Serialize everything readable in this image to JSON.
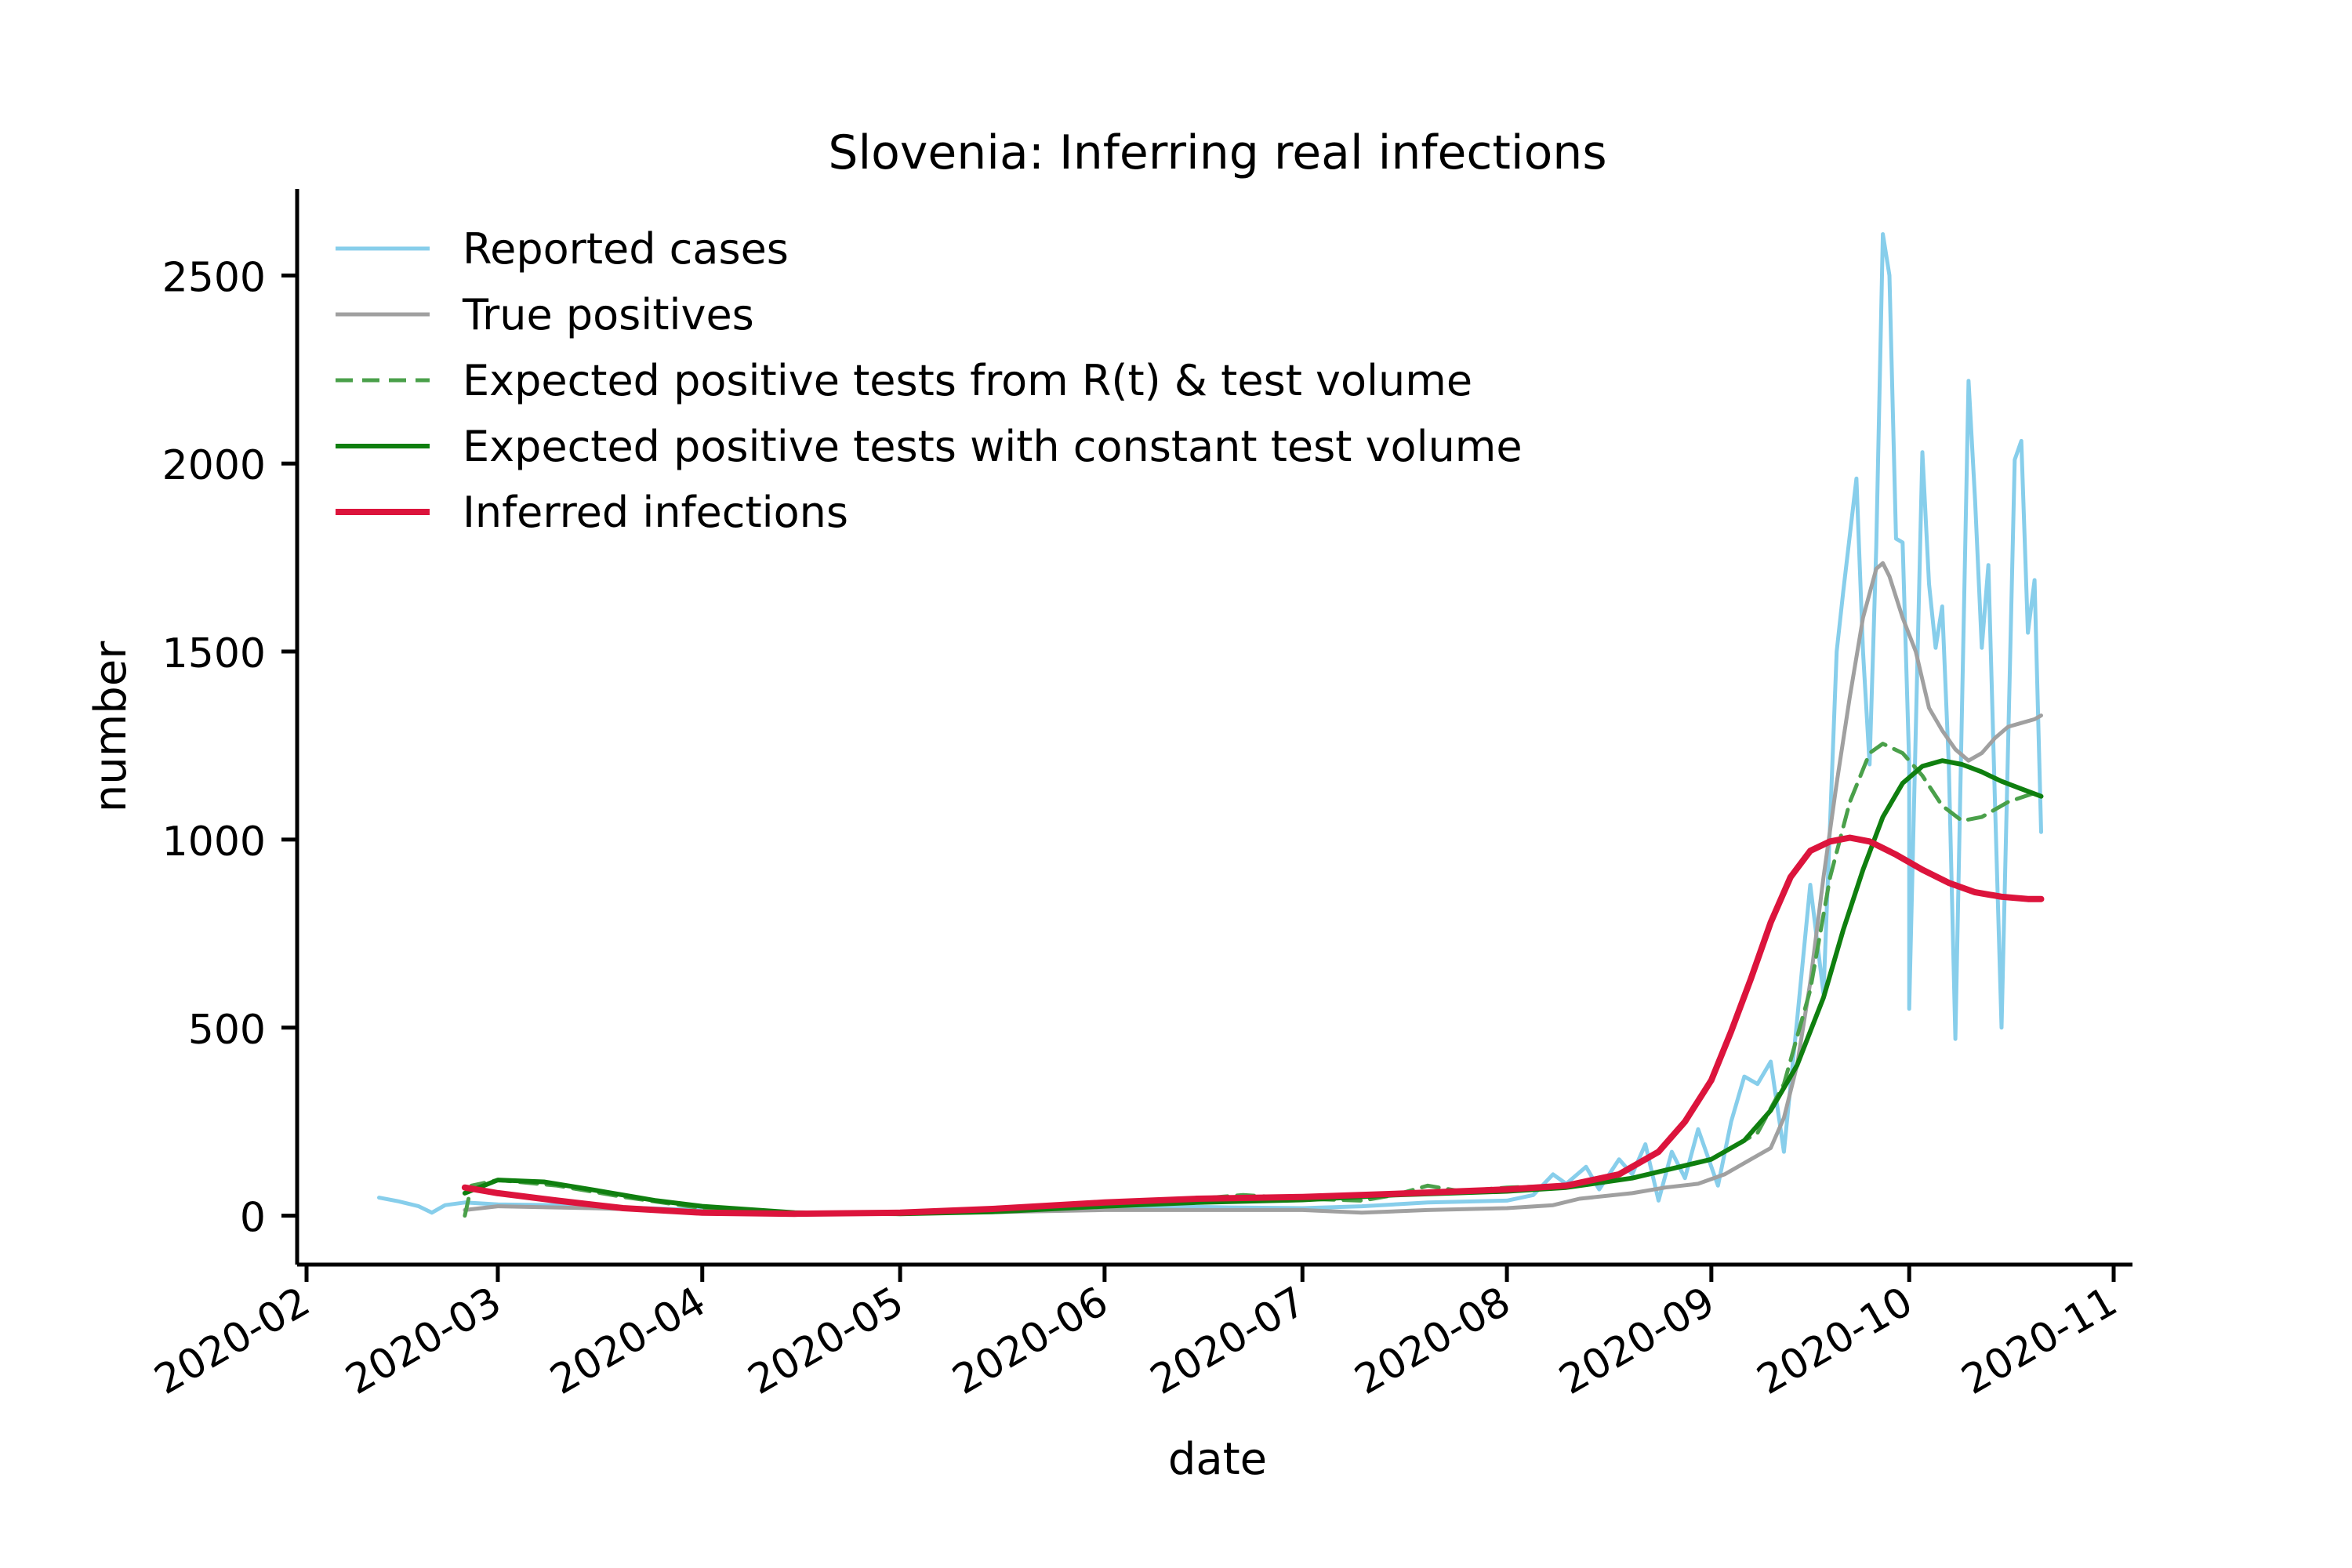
{
  "chart_data": {
    "type": "line",
    "title": "Slovenia: Inferring real infections",
    "xlabel": "date",
    "ylabel": "number",
    "x_axis": "date",
    "xlim": [
      "2020-02-01",
      "2020-11-01"
    ],
    "ylim": [
      -130,
      2730
    ],
    "x_ticks": [
      "2020-02",
      "2020-03",
      "2020-04",
      "2020-05",
      "2020-06",
      "2020-07",
      "2020-08",
      "2020-09",
      "2020-10",
      "2020-11"
    ],
    "x_tick_dates": [
      "2020-02-01",
      "2020-03-01",
      "2020-04-01",
      "2020-05-01",
      "2020-06-01",
      "2020-07-01",
      "2020-08-01",
      "2020-09-01",
      "2020-10-01",
      "2020-11-01"
    ],
    "y_ticks": [
      0,
      500,
      1000,
      1500,
      2000,
      2500
    ],
    "grid": false,
    "legend_position": "top-left",
    "series": [
      {
        "name": "Reported cases",
        "color": "#87ceeb",
        "style": "solid",
        "points": [
          [
            "2020-02-12",
            48
          ],
          [
            "2020-02-15",
            38
          ],
          [
            "2020-02-18",
            25
          ],
          [
            "2020-02-20",
            8
          ],
          [
            "2020-02-22",
            28
          ],
          [
            "2020-02-25",
            35
          ],
          [
            "2020-03-01",
            30
          ],
          [
            "2020-03-10",
            28
          ],
          [
            "2020-03-20",
            22
          ],
          [
            "2020-04-01",
            15
          ],
          [
            "2020-04-15",
            8
          ],
          [
            "2020-05-01",
            8
          ],
          [
            "2020-05-15",
            10
          ],
          [
            "2020-06-01",
            20
          ],
          [
            "2020-06-10",
            25
          ],
          [
            "2020-06-20",
            22
          ],
          [
            "2020-07-01",
            20
          ],
          [
            "2020-07-10",
            25
          ],
          [
            "2020-07-20",
            35
          ],
          [
            "2020-08-01",
            40
          ],
          [
            "2020-08-05",
            55
          ],
          [
            "2020-08-08",
            110
          ],
          [
            "2020-08-10",
            85
          ],
          [
            "2020-08-13",
            130
          ],
          [
            "2020-08-15",
            70
          ],
          [
            "2020-08-18",
            150
          ],
          [
            "2020-08-20",
            110
          ],
          [
            "2020-08-22",
            190
          ],
          [
            "2020-08-24",
            40
          ],
          [
            "2020-08-26",
            170
          ],
          [
            "2020-08-28",
            100
          ],
          [
            "2020-08-30",
            230
          ],
          [
            "2020-09-02",
            80
          ],
          [
            "2020-09-04",
            250
          ],
          [
            "2020-09-06",
            370
          ],
          [
            "2020-09-08",
            350
          ],
          [
            "2020-09-10",
            410
          ],
          [
            "2020-09-12",
            170
          ],
          [
            "2020-09-14",
            520
          ],
          [
            "2020-09-16",
            880
          ],
          [
            "2020-09-18",
            590
          ],
          [
            "2020-09-20",
            1500
          ],
          [
            "2020-09-21",
            1660
          ],
          [
            "2020-09-23",
            1960
          ],
          [
            "2020-09-24",
            1500
          ],
          [
            "2020-09-25",
            1200
          ],
          [
            "2020-09-26",
            1780
          ],
          [
            "2020-09-27",
            2610
          ],
          [
            "2020-09-28",
            2500
          ],
          [
            "2020-09-29",
            1800
          ],
          [
            "2020-09-30",
            1790
          ],
          [
            "2020-10-01",
            1200
          ],
          [
            "2020-10-01",
            550
          ],
          [
            "2020-10-03",
            2030
          ],
          [
            "2020-10-04",
            1680
          ],
          [
            "2020-10-05",
            1510
          ],
          [
            "2020-10-06",
            1620
          ],
          [
            "2020-10-07",
            1200
          ],
          [
            "2020-10-08",
            470
          ],
          [
            "2020-10-10",
            2220
          ],
          [
            "2020-10-11",
            1900
          ],
          [
            "2020-10-12",
            1510
          ],
          [
            "2020-10-13",
            1730
          ],
          [
            "2020-10-14",
            1100
          ],
          [
            "2020-10-15",
            500
          ],
          [
            "2020-10-17",
            2010
          ],
          [
            "2020-10-18",
            2060
          ],
          [
            "2020-10-19",
            1550
          ],
          [
            "2020-10-20",
            1690
          ],
          [
            "2020-10-21",
            1020
          ]
        ]
      },
      {
        "name": "True positives",
        "color": "#a0a0a0",
        "style": "solid",
        "points": [
          [
            "2020-02-25",
            15
          ],
          [
            "2020-03-01",
            25
          ],
          [
            "2020-03-15",
            20
          ],
          [
            "2020-04-01",
            12
          ],
          [
            "2020-05-01",
            5
          ],
          [
            "2020-06-01",
            15
          ],
          [
            "2020-07-01",
            15
          ],
          [
            "2020-07-10",
            8
          ],
          [
            "2020-07-20",
            15
          ],
          [
            "2020-08-01",
            20
          ],
          [
            "2020-08-08",
            28
          ],
          [
            "2020-08-12",
            45
          ],
          [
            "2020-08-20",
            60
          ],
          [
            "2020-08-25",
            75
          ],
          [
            "2020-08-30",
            85
          ],
          [
            "2020-09-03",
            110
          ],
          [
            "2020-09-07",
            150
          ],
          [
            "2020-09-10",
            180
          ],
          [
            "2020-09-12",
            260
          ],
          [
            "2020-09-14",
            400
          ],
          [
            "2020-09-16",
            620
          ],
          [
            "2020-09-18",
            900
          ],
          [
            "2020-09-20",
            1150
          ],
          [
            "2020-09-22",
            1380
          ],
          [
            "2020-09-24",
            1590
          ],
          [
            "2020-09-26",
            1720
          ],
          [
            "2020-09-27",
            1735
          ],
          [
            "2020-09-28",
            1700
          ],
          [
            "2020-09-30",
            1590
          ],
          [
            "2020-10-02",
            1500
          ],
          [
            "2020-10-04",
            1350
          ],
          [
            "2020-10-06",
            1290
          ],
          [
            "2020-10-08",
            1240
          ],
          [
            "2020-10-10",
            1210
          ],
          [
            "2020-10-12",
            1230
          ],
          [
            "2020-10-14",
            1270
          ],
          [
            "2020-10-16",
            1300
          ],
          [
            "2020-10-18",
            1310
          ],
          [
            "2020-10-20",
            1320
          ],
          [
            "2020-10-21",
            1330
          ]
        ]
      },
      {
        "name": "Expected positive tests from R(t) & test volume",
        "color": "#4aa04a",
        "style": "dashed",
        "points": [
          [
            "2020-02-25",
            0
          ],
          [
            "2020-02-26",
            80
          ],
          [
            "2020-03-01",
            95
          ],
          [
            "2020-03-10",
            80
          ],
          [
            "2020-03-20",
            50
          ],
          [
            "2020-04-01",
            20
          ],
          [
            "2020-04-15",
            5
          ],
          [
            "2020-05-01",
            5
          ],
          [
            "2020-05-15",
            10
          ],
          [
            "2020-06-01",
            30
          ],
          [
            "2020-06-15",
            45
          ],
          [
            "2020-06-22",
            55
          ],
          [
            "2020-07-01",
            45
          ],
          [
            "2020-07-10",
            40
          ],
          [
            "2020-07-15",
            55
          ],
          [
            "2020-07-20",
            80
          ],
          [
            "2020-07-25",
            65
          ],
          [
            "2020-08-01",
            75
          ],
          [
            "2020-08-10",
            80
          ],
          [
            "2020-08-20",
            100
          ],
          [
            "2020-09-01",
            150
          ],
          [
            "2020-09-08",
            220
          ],
          [
            "2020-09-12",
            350
          ],
          [
            "2020-09-16",
            600
          ],
          [
            "2020-09-19",
            900
          ],
          [
            "2020-09-22",
            1100
          ],
          [
            "2020-09-25",
            1230
          ],
          [
            "2020-09-27",
            1255
          ],
          [
            "2020-09-30",
            1230
          ],
          [
            "2020-10-03",
            1170
          ],
          [
            "2020-10-06",
            1090
          ],
          [
            "2020-10-09",
            1050
          ],
          [
            "2020-10-12",
            1060
          ],
          [
            "2020-10-16",
            1100
          ],
          [
            "2020-10-21",
            1130
          ]
        ]
      },
      {
        "name": "Expected positive tests with constant test volume",
        "color": "#0f7f0f",
        "style": "solid",
        "points": [
          [
            "2020-02-25",
            60
          ],
          [
            "2020-03-01",
            95
          ],
          [
            "2020-03-08",
            90
          ],
          [
            "2020-03-15",
            70
          ],
          [
            "2020-03-25",
            40
          ],
          [
            "2020-04-01",
            25
          ],
          [
            "2020-04-15",
            8
          ],
          [
            "2020-05-01",
            5
          ],
          [
            "2020-05-15",
            10
          ],
          [
            "2020-06-01",
            25
          ],
          [
            "2020-06-15",
            35
          ],
          [
            "2020-07-01",
            42
          ],
          [
            "2020-07-15",
            55
          ],
          [
            "2020-08-01",
            65
          ],
          [
            "2020-08-10",
            75
          ],
          [
            "2020-08-20",
            100
          ],
          [
            "2020-09-01",
            150
          ],
          [
            "2020-09-06",
            200
          ],
          [
            "2020-09-10",
            280
          ],
          [
            "2020-09-14",
            400
          ],
          [
            "2020-09-18",
            580
          ],
          [
            "2020-09-21",
            760
          ],
          [
            "2020-09-24",
            920
          ],
          [
            "2020-09-27",
            1060
          ],
          [
            "2020-09-30",
            1150
          ],
          [
            "2020-10-03",
            1195
          ],
          [
            "2020-10-06",
            1210
          ],
          [
            "2020-10-09",
            1200
          ],
          [
            "2020-10-12",
            1180
          ],
          [
            "2020-10-15",
            1155
          ],
          [
            "2020-10-18",
            1135
          ],
          [
            "2020-10-21",
            1115
          ]
        ]
      },
      {
        "name": "Inferred infections",
        "color": "#dc143c",
        "style": "solid",
        "points": [
          [
            "2020-02-25",
            75
          ],
          [
            "2020-03-01",
            60
          ],
          [
            "2020-03-10",
            40
          ],
          [
            "2020-03-20",
            20
          ],
          [
            "2020-04-01",
            8
          ],
          [
            "2020-04-15",
            5
          ],
          [
            "2020-05-01",
            8
          ],
          [
            "2020-05-15",
            18
          ],
          [
            "2020-06-01",
            35
          ],
          [
            "2020-06-15",
            45
          ],
          [
            "2020-07-01",
            50
          ],
          [
            "2020-07-15",
            58
          ],
          [
            "2020-08-01",
            70
          ],
          [
            "2020-08-10",
            80
          ],
          [
            "2020-08-18",
            110
          ],
          [
            "2020-08-24",
            170
          ],
          [
            "2020-08-28",
            250
          ],
          [
            "2020-09-01",
            360
          ],
          [
            "2020-09-04",
            490
          ],
          [
            "2020-09-07",
            630
          ],
          [
            "2020-09-10",
            780
          ],
          [
            "2020-09-13",
            900
          ],
          [
            "2020-09-16",
            970
          ],
          [
            "2020-09-19",
            995
          ],
          [
            "2020-09-22",
            1005
          ],
          [
            "2020-09-25",
            995
          ],
          [
            "2020-09-29",
            960
          ],
          [
            "2020-10-03",
            920
          ],
          [
            "2020-10-07",
            885
          ],
          [
            "2020-10-11",
            860
          ],
          [
            "2020-10-15",
            848
          ],
          [
            "2020-10-19",
            842
          ],
          [
            "2020-10-21",
            842
          ]
        ]
      }
    ]
  }
}
